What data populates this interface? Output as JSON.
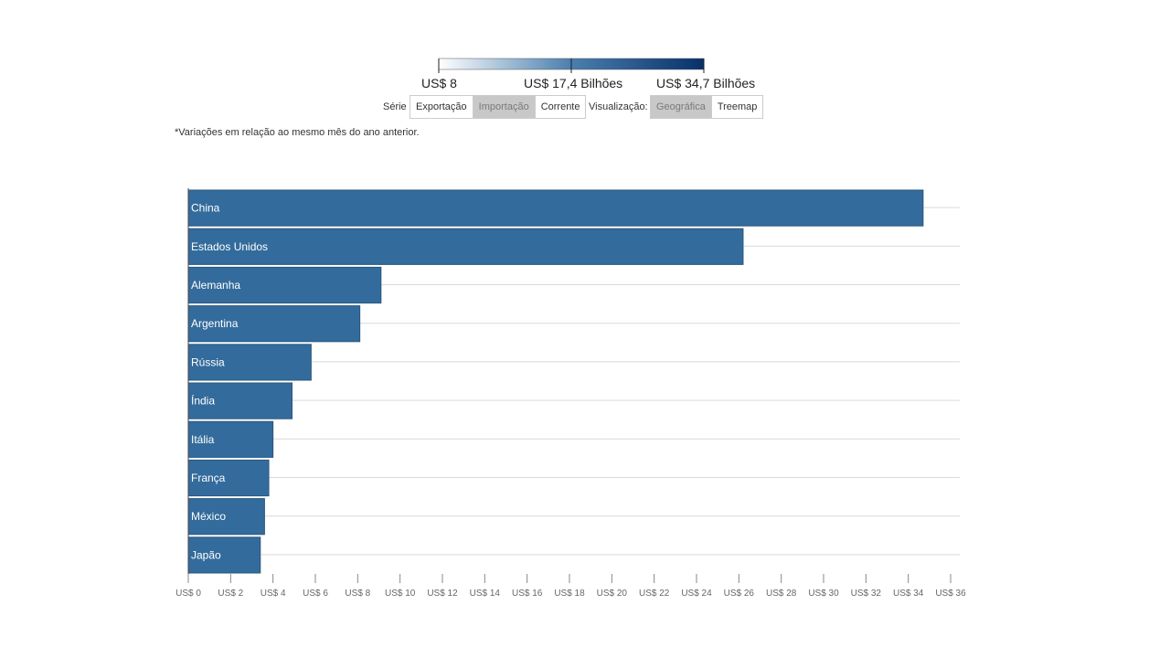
{
  "legend": {
    "min_label": "US$ 8",
    "mid_label": "US$ 17,4 Bilhões",
    "max_label": "US$ 34,7 Bilhões",
    "color_low": "#ffffff",
    "color_high": "#08306b"
  },
  "controls": {
    "serie_label": "Série",
    "serie_options": [
      "Exportação",
      "Importação",
      "Corrente"
    ],
    "serie_selected": "Importação",
    "view_label": "Visualização:",
    "view_options": [
      "Geográfica",
      "Treemap"
    ],
    "view_selected": "Geográfica"
  },
  "note": "*Variações em relação ao mesmo mês do ano anterior.",
  "chart_data": {
    "type": "bar",
    "orientation": "horizontal",
    "categories": [
      "China",
      "Estados Unidos",
      "Alemanha",
      "Argentina",
      "Rússia",
      "Índia",
      "Itália",
      "França",
      "México",
      "Japão"
    ],
    "values": [
      34.7,
      26.2,
      9.1,
      8.1,
      5.8,
      4.9,
      4.0,
      3.8,
      3.6,
      3.4
    ],
    "xlim": [
      0,
      36
    ],
    "xtick_step": 2,
    "tick_prefix": "US$ ",
    "bar_color": "#336b9c",
    "grid": true
  }
}
